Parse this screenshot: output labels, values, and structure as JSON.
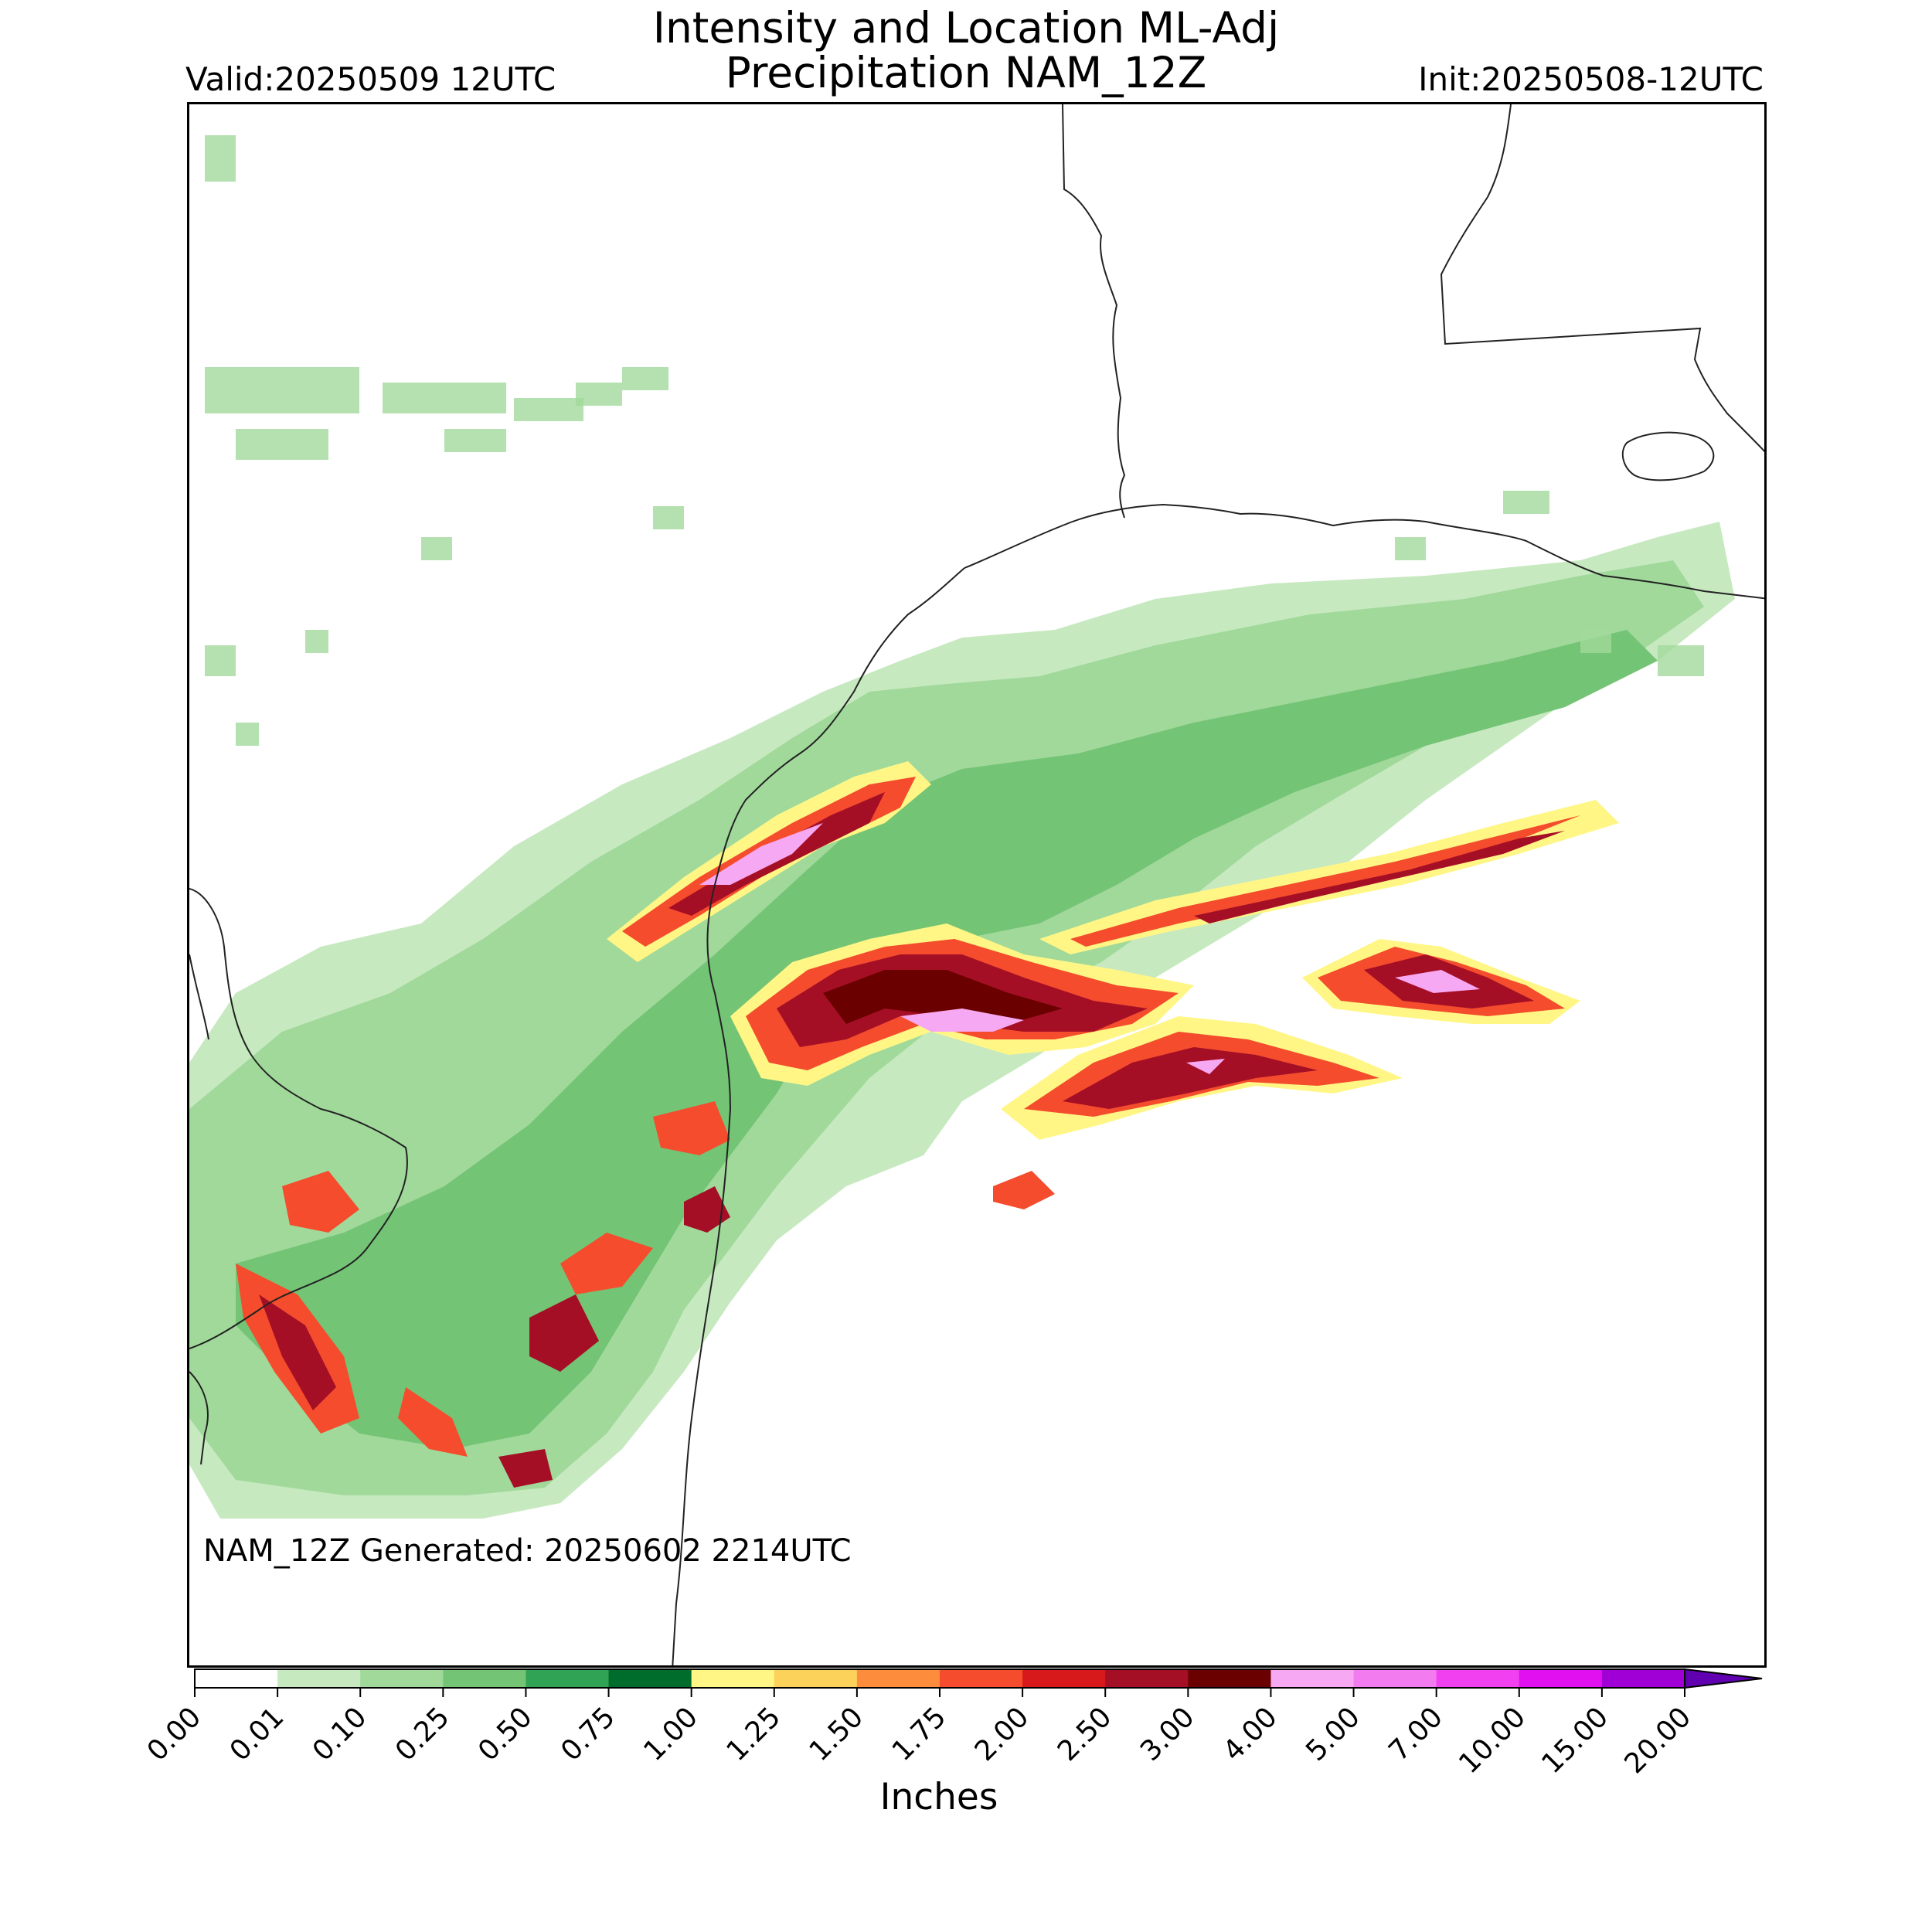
{
  "header": {
    "title_line1": "Intensity and Location ML-Adj",
    "title_line2": "Precipitation NAM_12Z",
    "valid": "Valid:20250509 12UTC",
    "init": "Init:20250508-12UTC"
  },
  "map": {
    "generated": "NAM_12Z Generated: 20250602 2214UTC",
    "features": [
      "Texas Gulf coastline",
      "Louisiana border",
      "Mississippi / Lake Pontchartrain",
      "Mexico border"
    ],
    "precip_bands": [
      {
        "name": "galveston-matagorda-max",
        "max_inches": "4.00-5.00"
      },
      {
        "name": "offshore-central-max",
        "max_inches": "4.00-5.00"
      },
      {
        "name": "offshore-east-band",
        "max_inches": "4.00-5.00"
      },
      {
        "name": "offshore-south-band",
        "max_inches": "4.00-5.00"
      },
      {
        "name": "south-texas-cluster",
        "max_inches": "3.00-4.00"
      }
    ]
  },
  "colorbar": {
    "unit": "Inches",
    "ticks": [
      "0.00",
      "0.01",
      "0.10",
      "0.25",
      "0.50",
      "0.75",
      "1.00",
      "1.25",
      "1.50",
      "1.75",
      "2.00",
      "2.50",
      "3.00",
      "4.00",
      "5.00",
      "7.00",
      "10.00",
      "15.00",
      "20.00"
    ],
    "colors": [
      "#ffffff",
      "#c7e9c0",
      "#a1d99b",
      "#74c476",
      "#31a354",
      "#006d2c",
      "#fff685",
      "#fdd25a",
      "#fd8d3c",
      "#f44c2c",
      "#d7191c",
      "#a50f26",
      "#6b0000",
      "#f7a8f2",
      "#f27bf0",
      "#f040f0",
      "#e010f0",
      "#a000d6",
      "#6000b0"
    ]
  }
}
